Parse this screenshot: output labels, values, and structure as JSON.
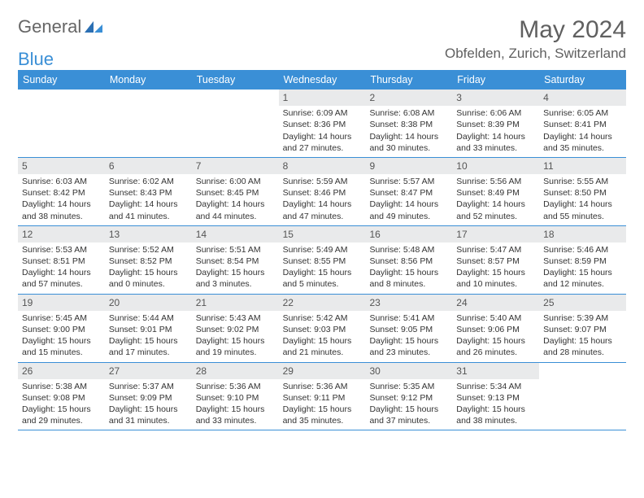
{
  "logo": {
    "word1": "General",
    "word2": "Blue"
  },
  "title": "May 2024",
  "location": "Obfelden, Zurich, Switzerland",
  "header_bg": "#3a8fd6",
  "band_bg": "#e9eaeb",
  "day_labels": [
    "Sunday",
    "Monday",
    "Tuesday",
    "Wednesday",
    "Thursday",
    "Friday",
    "Saturday"
  ],
  "weeks": [
    [
      {
        "n": "",
        "sr": "",
        "ss": "",
        "dl1": "",
        "dl2": ""
      },
      {
        "n": "",
        "sr": "",
        "ss": "",
        "dl1": "",
        "dl2": ""
      },
      {
        "n": "",
        "sr": "",
        "ss": "",
        "dl1": "",
        "dl2": ""
      },
      {
        "n": "1",
        "sr": "Sunrise: 6:09 AM",
        "ss": "Sunset: 8:36 PM",
        "dl1": "Daylight: 14 hours",
        "dl2": "and 27 minutes."
      },
      {
        "n": "2",
        "sr": "Sunrise: 6:08 AM",
        "ss": "Sunset: 8:38 PM",
        "dl1": "Daylight: 14 hours",
        "dl2": "and 30 minutes."
      },
      {
        "n": "3",
        "sr": "Sunrise: 6:06 AM",
        "ss": "Sunset: 8:39 PM",
        "dl1": "Daylight: 14 hours",
        "dl2": "and 33 minutes."
      },
      {
        "n": "4",
        "sr": "Sunrise: 6:05 AM",
        "ss": "Sunset: 8:41 PM",
        "dl1": "Daylight: 14 hours",
        "dl2": "and 35 minutes."
      }
    ],
    [
      {
        "n": "5",
        "sr": "Sunrise: 6:03 AM",
        "ss": "Sunset: 8:42 PM",
        "dl1": "Daylight: 14 hours",
        "dl2": "and 38 minutes."
      },
      {
        "n": "6",
        "sr": "Sunrise: 6:02 AM",
        "ss": "Sunset: 8:43 PM",
        "dl1": "Daylight: 14 hours",
        "dl2": "and 41 minutes."
      },
      {
        "n": "7",
        "sr": "Sunrise: 6:00 AM",
        "ss": "Sunset: 8:45 PM",
        "dl1": "Daylight: 14 hours",
        "dl2": "and 44 minutes."
      },
      {
        "n": "8",
        "sr": "Sunrise: 5:59 AM",
        "ss": "Sunset: 8:46 PM",
        "dl1": "Daylight: 14 hours",
        "dl2": "and 47 minutes."
      },
      {
        "n": "9",
        "sr": "Sunrise: 5:57 AM",
        "ss": "Sunset: 8:47 PM",
        "dl1": "Daylight: 14 hours",
        "dl2": "and 49 minutes."
      },
      {
        "n": "10",
        "sr": "Sunrise: 5:56 AM",
        "ss": "Sunset: 8:49 PM",
        "dl1": "Daylight: 14 hours",
        "dl2": "and 52 minutes."
      },
      {
        "n": "11",
        "sr": "Sunrise: 5:55 AM",
        "ss": "Sunset: 8:50 PM",
        "dl1": "Daylight: 14 hours",
        "dl2": "and 55 minutes."
      }
    ],
    [
      {
        "n": "12",
        "sr": "Sunrise: 5:53 AM",
        "ss": "Sunset: 8:51 PM",
        "dl1": "Daylight: 14 hours",
        "dl2": "and 57 minutes."
      },
      {
        "n": "13",
        "sr": "Sunrise: 5:52 AM",
        "ss": "Sunset: 8:52 PM",
        "dl1": "Daylight: 15 hours",
        "dl2": "and 0 minutes."
      },
      {
        "n": "14",
        "sr": "Sunrise: 5:51 AM",
        "ss": "Sunset: 8:54 PM",
        "dl1": "Daylight: 15 hours",
        "dl2": "and 3 minutes."
      },
      {
        "n": "15",
        "sr": "Sunrise: 5:49 AM",
        "ss": "Sunset: 8:55 PM",
        "dl1": "Daylight: 15 hours",
        "dl2": "and 5 minutes."
      },
      {
        "n": "16",
        "sr": "Sunrise: 5:48 AM",
        "ss": "Sunset: 8:56 PM",
        "dl1": "Daylight: 15 hours",
        "dl2": "and 8 minutes."
      },
      {
        "n": "17",
        "sr": "Sunrise: 5:47 AM",
        "ss": "Sunset: 8:57 PM",
        "dl1": "Daylight: 15 hours",
        "dl2": "and 10 minutes."
      },
      {
        "n": "18",
        "sr": "Sunrise: 5:46 AM",
        "ss": "Sunset: 8:59 PM",
        "dl1": "Daylight: 15 hours",
        "dl2": "and 12 minutes."
      }
    ],
    [
      {
        "n": "19",
        "sr": "Sunrise: 5:45 AM",
        "ss": "Sunset: 9:00 PM",
        "dl1": "Daylight: 15 hours",
        "dl2": "and 15 minutes."
      },
      {
        "n": "20",
        "sr": "Sunrise: 5:44 AM",
        "ss": "Sunset: 9:01 PM",
        "dl1": "Daylight: 15 hours",
        "dl2": "and 17 minutes."
      },
      {
        "n": "21",
        "sr": "Sunrise: 5:43 AM",
        "ss": "Sunset: 9:02 PM",
        "dl1": "Daylight: 15 hours",
        "dl2": "and 19 minutes."
      },
      {
        "n": "22",
        "sr": "Sunrise: 5:42 AM",
        "ss": "Sunset: 9:03 PM",
        "dl1": "Daylight: 15 hours",
        "dl2": "and 21 minutes."
      },
      {
        "n": "23",
        "sr": "Sunrise: 5:41 AM",
        "ss": "Sunset: 9:05 PM",
        "dl1": "Daylight: 15 hours",
        "dl2": "and 23 minutes."
      },
      {
        "n": "24",
        "sr": "Sunrise: 5:40 AM",
        "ss": "Sunset: 9:06 PM",
        "dl1": "Daylight: 15 hours",
        "dl2": "and 26 minutes."
      },
      {
        "n": "25",
        "sr": "Sunrise: 5:39 AM",
        "ss": "Sunset: 9:07 PM",
        "dl1": "Daylight: 15 hours",
        "dl2": "and 28 minutes."
      }
    ],
    [
      {
        "n": "26",
        "sr": "Sunrise: 5:38 AM",
        "ss": "Sunset: 9:08 PM",
        "dl1": "Daylight: 15 hours",
        "dl2": "and 29 minutes."
      },
      {
        "n": "27",
        "sr": "Sunrise: 5:37 AM",
        "ss": "Sunset: 9:09 PM",
        "dl1": "Daylight: 15 hours",
        "dl2": "and 31 minutes."
      },
      {
        "n": "28",
        "sr": "Sunrise: 5:36 AM",
        "ss": "Sunset: 9:10 PM",
        "dl1": "Daylight: 15 hours",
        "dl2": "and 33 minutes."
      },
      {
        "n": "29",
        "sr": "Sunrise: 5:36 AM",
        "ss": "Sunset: 9:11 PM",
        "dl1": "Daylight: 15 hours",
        "dl2": "and 35 minutes."
      },
      {
        "n": "30",
        "sr": "Sunrise: 5:35 AM",
        "ss": "Sunset: 9:12 PM",
        "dl1": "Daylight: 15 hours",
        "dl2": "and 37 minutes."
      },
      {
        "n": "31",
        "sr": "Sunrise: 5:34 AM",
        "ss": "Sunset: 9:13 PM",
        "dl1": "Daylight: 15 hours",
        "dl2": "and 38 minutes."
      },
      {
        "n": "",
        "sr": "",
        "ss": "",
        "dl1": "",
        "dl2": ""
      }
    ]
  ]
}
